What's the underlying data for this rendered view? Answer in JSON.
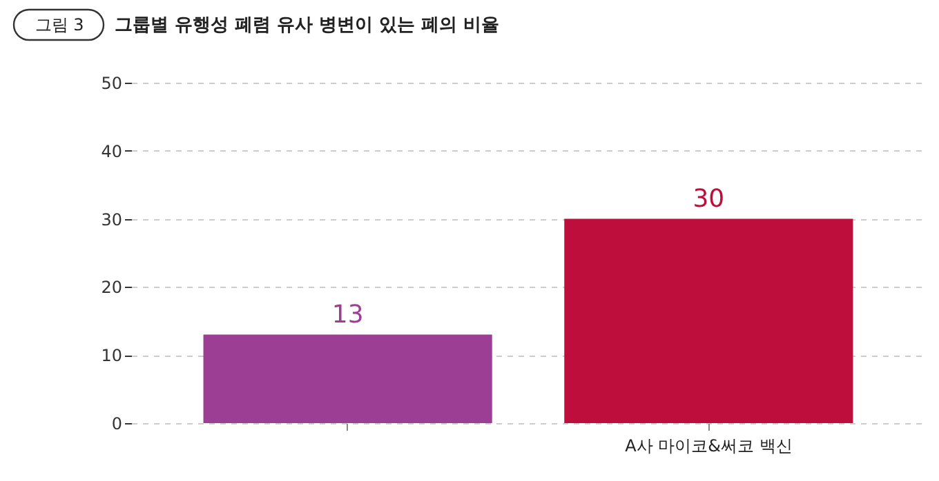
{
  "chart_data": {
    "type": "bar",
    "title": "그룹별 유행성 폐렴 유사 병변이 있는 폐의 비율",
    "annotations": [
      "그림 3"
    ],
    "categories": [
      null,
      "A사 마이코&써코 백신"
    ],
    "values": [
      13,
      30
    ],
    "colors": [
      "#9c3f94",
      "#be0f3c"
    ],
    "ylim": [
      0,
      50
    ],
    "yticks": [
      0,
      10,
      20,
      30,
      40,
      50
    ],
    "grid": "y",
    "data_labels": true
  }
}
